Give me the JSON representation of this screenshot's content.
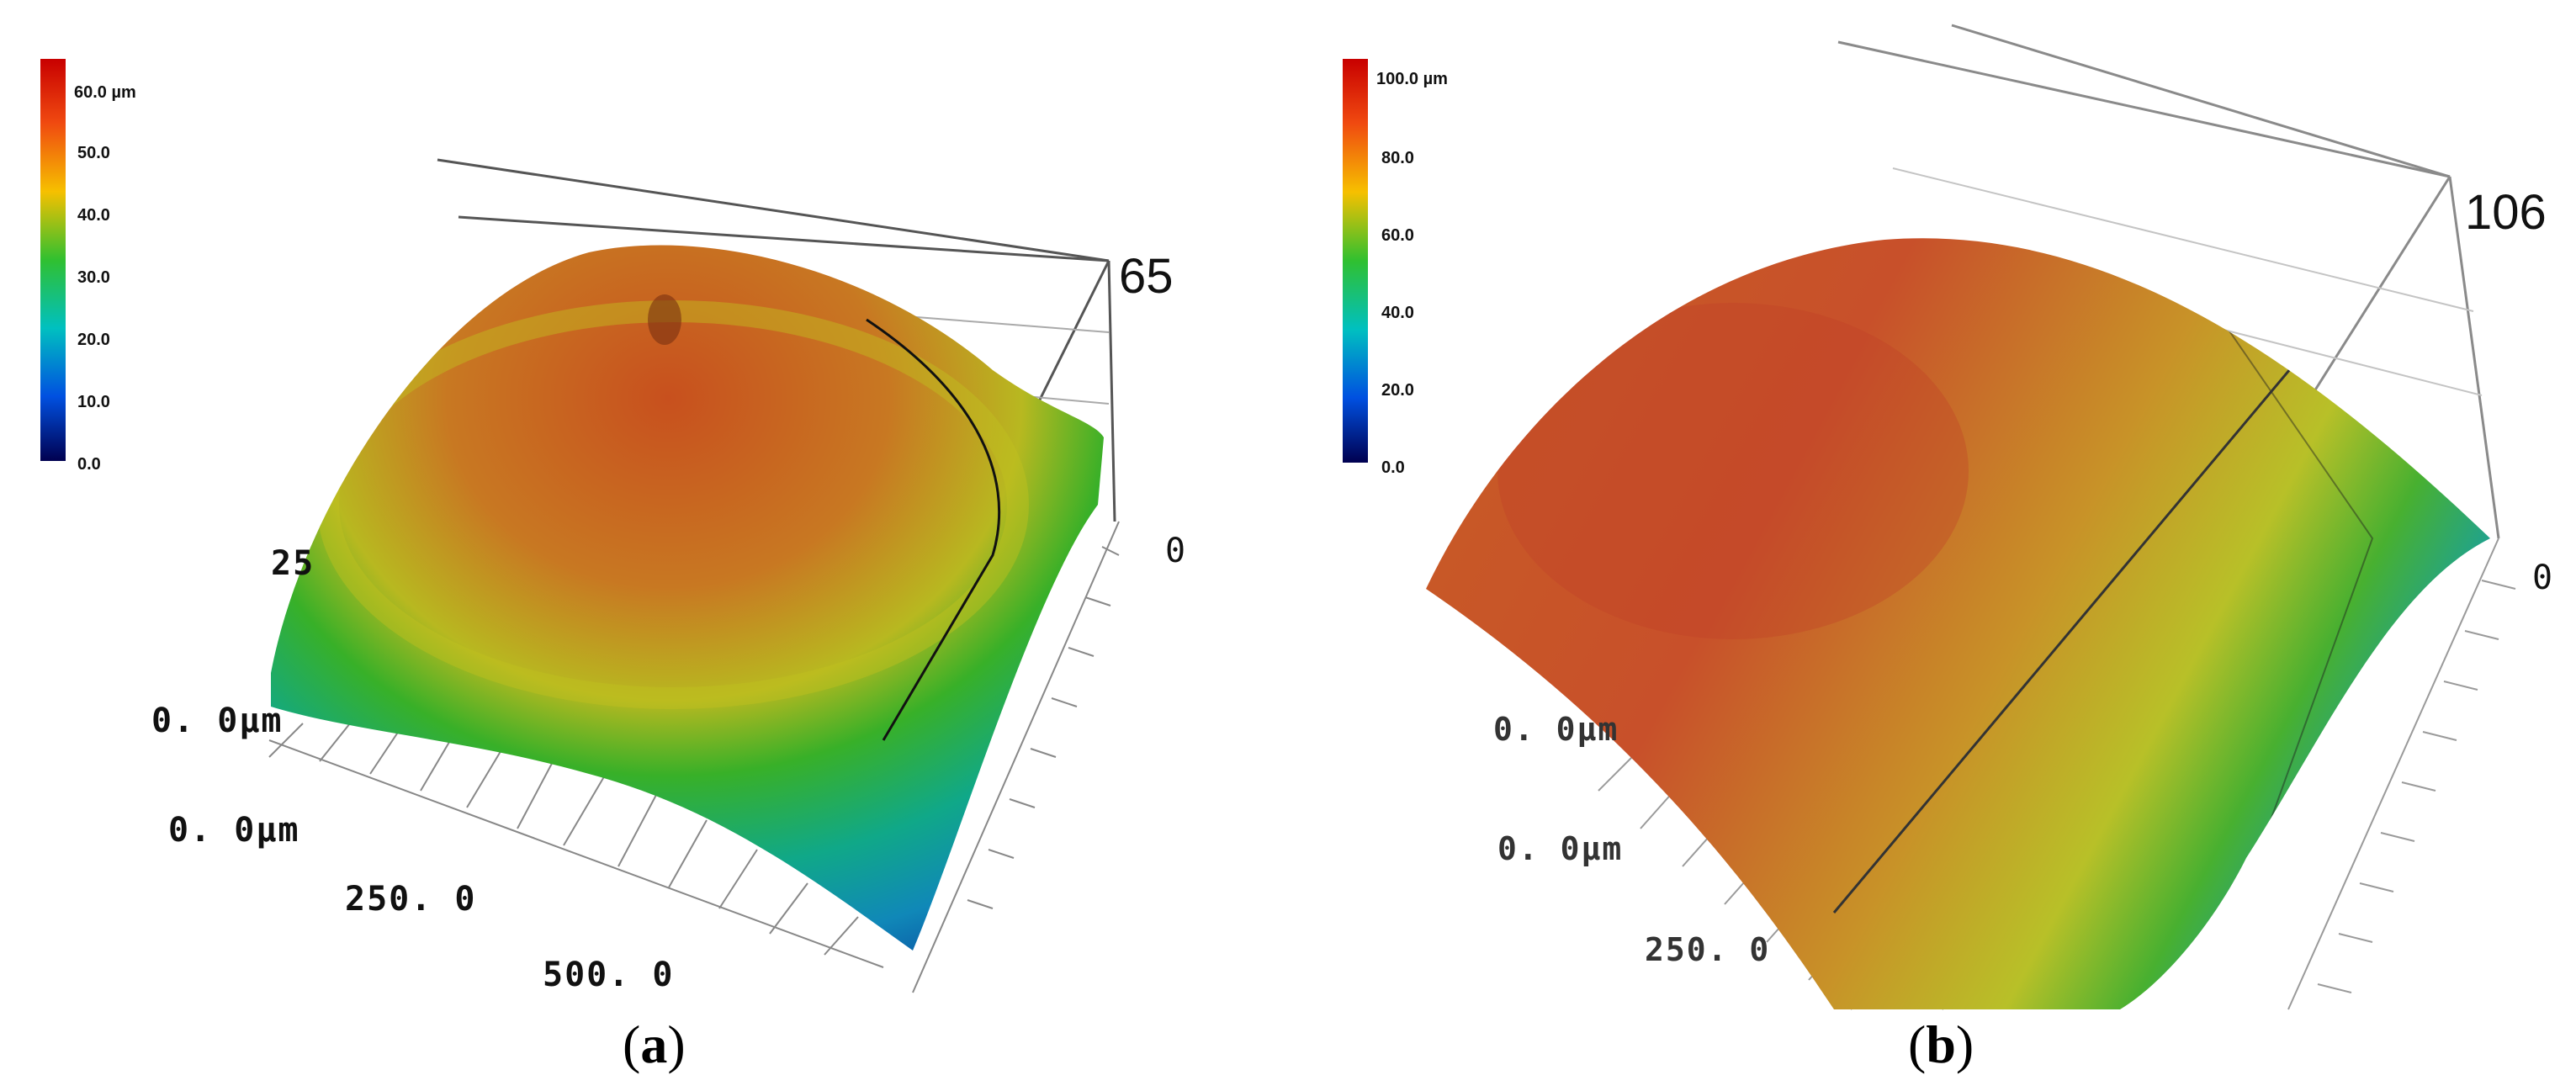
{
  "panel_a": {
    "color_scale": {
      "unit_label": "60.0 µm",
      "ticks": [
        "50.0",
        "40.0",
        "30.0",
        "20.0",
        "10.0",
        "0.0"
      ]
    },
    "z_top": "65",
    "z_bottom": "0",
    "left_tick": "25",
    "y_origin": "0. 0µm",
    "x_origin": "0. 0µm",
    "x_tick_1": "250. 0",
    "x_tick_2": "500. 0",
    "caption_letter": "a"
  },
  "panel_b": {
    "color_scale": {
      "unit_label": "100.0 µm",
      "ticks": [
        "80.0",
        "60.0",
        "40.0",
        "20.0",
        "0.0"
      ]
    },
    "z_top": "106",
    "z_bottom": "0",
    "y_origin": "0. 0µm",
    "x_origin": "0. 0µm",
    "x_tick_1": "250. 0",
    "caption_letter": "b"
  },
  "colors": {
    "scale": [
      "#b40000",
      "#e83a1c",
      "#f5a000",
      "#d8d800",
      "#3cb832",
      "#00b4b4",
      "#0060d8",
      "#000060"
    ]
  }
}
